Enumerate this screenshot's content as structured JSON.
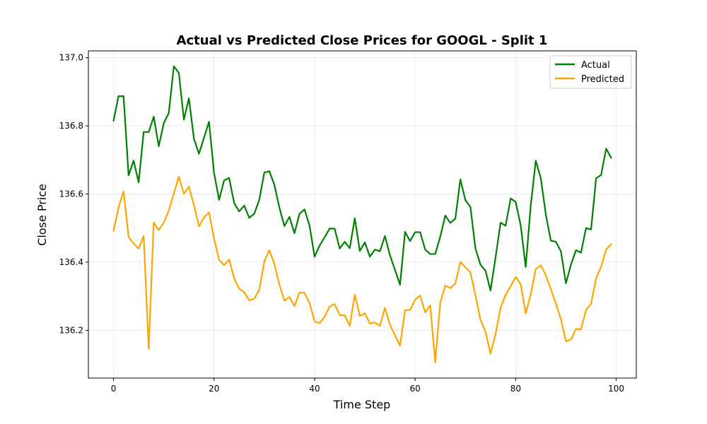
{
  "chart_data": {
    "type": "line",
    "title": "Actual vs Predicted Close Prices for GOOGL - Split 1",
    "xlabel": "Time Step",
    "ylabel": "Close Price",
    "xlim": [
      -5,
      104
    ],
    "ylim": [
      136.06,
      137.02
    ],
    "xticks": [
      0,
      20,
      40,
      60,
      80,
      100
    ],
    "yticks": [
      136.2,
      136.4,
      136.6,
      136.8,
      137.0
    ],
    "xtick_labels": [
      "0",
      "20",
      "40",
      "60",
      "80",
      "100"
    ],
    "ytick_labels": [
      "136.2",
      "136.4",
      "136.6",
      "136.8",
      "137.0"
    ],
    "grid": true,
    "legend_position": "top-right",
    "series": [
      {
        "name": "Actual",
        "color": "#008000",
        "values": [
          136.815,
          136.887,
          136.887,
          136.655,
          136.698,
          136.634,
          136.782,
          136.782,
          136.827,
          136.74,
          136.808,
          136.838,
          136.975,
          136.955,
          136.818,
          136.881,
          136.762,
          136.718,
          136.765,
          136.812,
          136.662,
          136.583,
          136.64,
          136.647,
          136.574,
          136.549,
          136.566,
          136.53,
          136.542,
          136.583,
          136.663,
          136.667,
          136.627,
          136.56,
          136.506,
          136.533,
          136.485,
          136.542,
          136.555,
          136.507,
          136.416,
          136.449,
          136.473,
          136.499,
          136.498,
          136.44,
          136.46,
          136.441,
          136.529,
          136.433,
          136.458,
          136.416,
          136.437,
          136.432,
          136.477,
          136.42,
          136.377,
          136.334,
          136.489,
          136.462,
          136.488,
          136.488,
          136.437,
          136.424,
          136.424,
          136.475,
          136.537,
          136.515,
          136.528,
          136.643,
          136.582,
          136.562,
          136.44,
          136.393,
          136.375,
          136.317,
          136.414,
          136.516,
          136.507,
          136.587,
          136.577,
          136.508,
          136.386,
          136.566,
          136.698,
          136.646,
          136.54,
          136.463,
          136.46,
          136.432,
          136.338,
          136.393,
          136.435,
          136.428,
          136.5,
          136.496,
          136.646,
          136.656,
          136.733,
          136.706
        ]
      },
      {
        "name": "Predicted",
        "color": "#FFA500",
        "values": [
          136.492,
          136.56,
          136.608,
          136.474,
          136.455,
          136.44,
          136.477,
          136.146,
          136.516,
          136.494,
          136.516,
          136.552,
          136.601,
          136.651,
          136.601,
          136.621,
          136.567,
          136.505,
          136.531,
          136.546,
          136.469,
          136.407,
          136.391,
          136.408,
          136.353,
          136.322,
          136.312,
          136.288,
          136.293,
          136.319,
          136.402,
          136.435,
          136.395,
          136.334,
          136.287,
          136.298,
          136.271,
          136.311,
          136.31,
          136.28,
          136.226,
          136.221,
          136.24,
          136.27,
          136.277,
          136.245,
          136.244,
          136.213,
          136.305,
          136.242,
          136.25,
          136.22,
          136.223,
          136.213,
          136.266,
          136.217,
          136.185,
          136.155,
          136.259,
          136.26,
          136.29,
          136.302,
          136.253,
          136.273,
          136.106,
          136.281,
          136.331,
          136.324,
          136.337,
          136.401,
          136.385,
          136.37,
          136.303,
          136.231,
          136.196,
          136.132,
          136.189,
          136.267,
          136.304,
          136.329,
          136.357,
          136.335,
          136.25,
          136.305,
          136.38,
          136.391,
          136.362,
          136.321,
          136.279,
          136.233,
          136.168,
          136.173,
          136.204,
          136.203,
          136.26,
          136.278,
          136.352,
          136.387,
          136.437,
          136.453
        ]
      }
    ]
  }
}
